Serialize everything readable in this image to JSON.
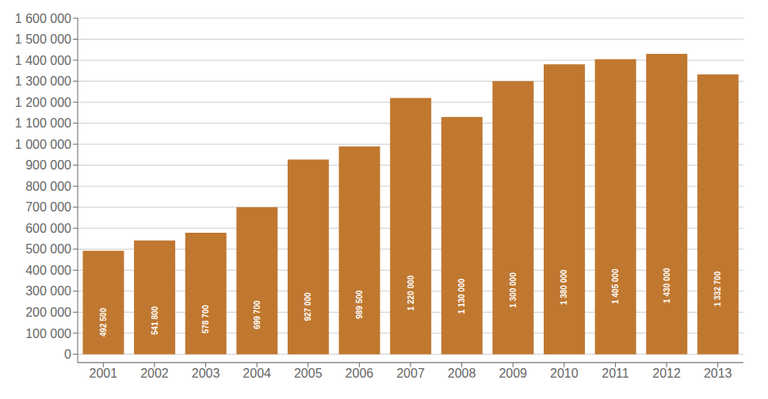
{
  "chart_data": {
    "type": "bar",
    "categories": [
      "2001",
      "2002",
      "2003",
      "2004",
      "2005",
      "2006",
      "2007",
      "2008",
      "2009",
      "2010",
      "2011",
      "2012",
      "2013"
    ],
    "values": [
      492500,
      541800,
      578700,
      699700,
      927000,
      989500,
      1220000,
      1130000,
      1300000,
      1380000,
      1405000,
      1430000,
      1332700
    ],
    "value_labels": [
      "492 500",
      "541 800",
      "578 700",
      "699 700",
      "927 000",
      "989 500",
      "1 220 000",
      "1 130 000",
      "1 300 000",
      "1 380 000",
      "1 405 000",
      "1 430 000",
      "1 332 700"
    ],
    "data_labels": true,
    "color": "#C07830",
    "ylim": [
      -40000,
      1600000
    ],
    "yticks": [
      0,
      {
        "value": 100000,
        "label": "100 000"
      },
      {
        "value": 200000,
        "label": "200 000"
      },
      {
        "value": 300000,
        "label": "300 000"
      },
      {
        "value": 400000,
        "label": "400 000"
      },
      {
        "value": 500000,
        "label": "500 000"
      },
      {
        "value": 600000,
        "label": "600 000"
      },
      {
        "value": 700000,
        "label": "700 000"
      },
      {
        "value": 800000,
        "label": "800 000"
      },
      {
        "value": 900000,
        "label": "900 000"
      },
      {
        "value": 1000000,
        "label": "1 000 000"
      },
      {
        "value": 1100000,
        "label": "1 100 000"
      },
      {
        "value": 1200000,
        "label": "1 200 000"
      },
      {
        "value": 1300000,
        "label": "1 300 000"
      },
      {
        "value": 1400000,
        "label": "1 400 000"
      },
      {
        "value": 1500000,
        "label": "1 500 000"
      },
      {
        "value": 1600000,
        "label": "1 600 000"
      }
    ],
    "grid": true
  }
}
